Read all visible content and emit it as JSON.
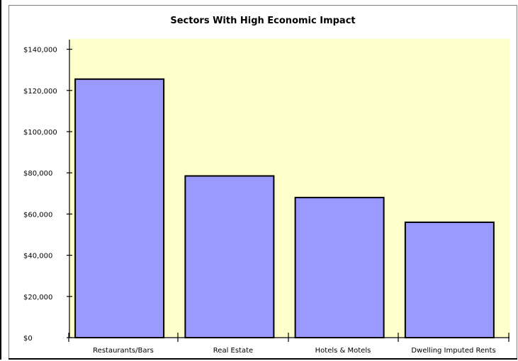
{
  "colors": {
    "plot_background": "#FFFFCC",
    "bar_fill": "#9999FF",
    "bar_stroke": "#000000"
  },
  "chart_data": {
    "type": "bar",
    "title": "Sectors With High Economic Impact",
    "xlabel": "",
    "ylabel": "",
    "categories": [
      "Restaurants/Bars",
      "Real Estate",
      "Hotels & Motels",
      "Dwelling Imputed Rents"
    ],
    "values": [
      125500,
      78500,
      68000,
      56000
    ],
    "ylim": [
      0,
      145000
    ],
    "yticks": [
      0,
      20000,
      40000,
      60000,
      80000,
      100000,
      120000,
      140000
    ],
    "ytick_labels": [
      "$0",
      "$20,000",
      "$40,000",
      "$60,000",
      "$80,000",
      "$100,000",
      "$120,000",
      "$140,000"
    ],
    "grid": false,
    "legend": "none"
  }
}
